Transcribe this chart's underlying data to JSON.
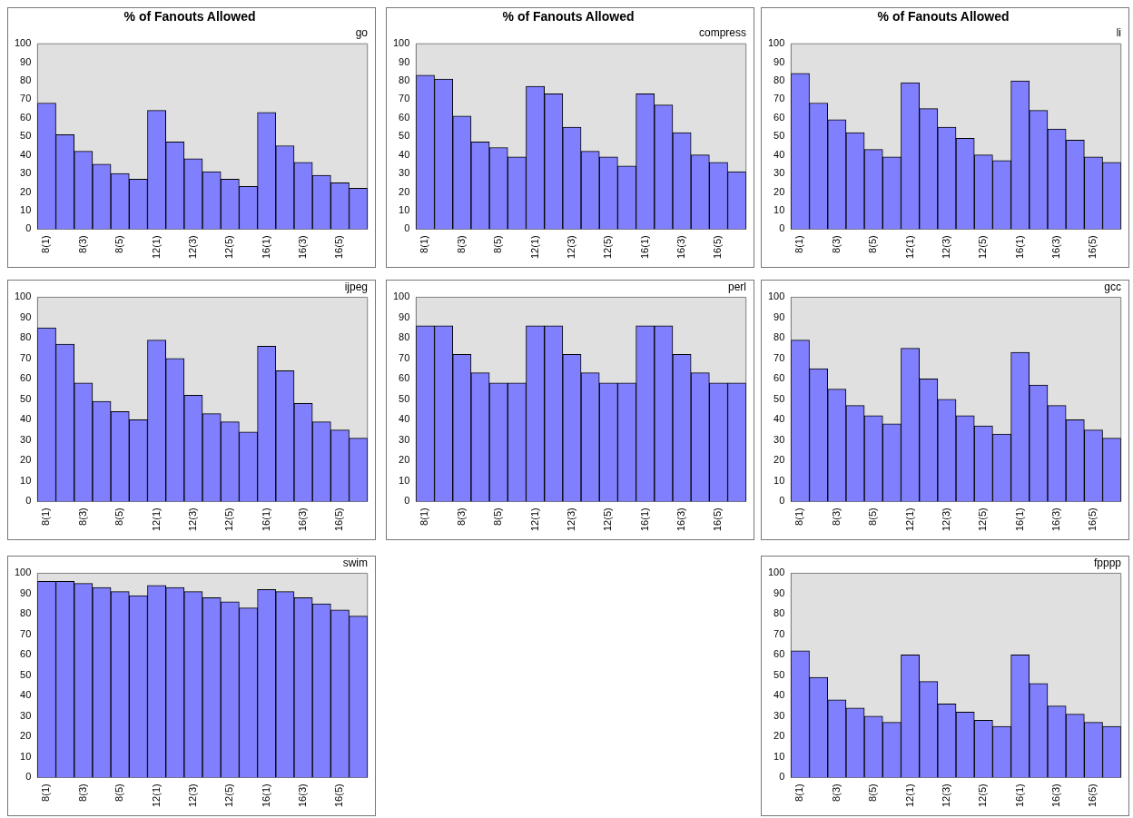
{
  "chart_data": [
    {
      "type": "bar",
      "title": "% of Fanouts Allowed",
      "subtitle": "go",
      "categories": [
        "8(1)",
        null,
        "8(3)",
        null,
        "8(5)",
        null,
        "12(1)",
        null,
        "12(3)",
        null,
        "12(5)",
        null,
        "16(1)",
        null,
        "16(3)",
        null,
        "16(5)",
        null
      ],
      "values": [
        68,
        51,
        42,
        35,
        30,
        27,
        64,
        47,
        38,
        31,
        27,
        23,
        63,
        45,
        36,
        29,
        25,
        22
      ],
      "color": "#8080ff",
      "ylim": [
        0,
        100
      ],
      "yticks": [
        0,
        10,
        20,
        30,
        40,
        50,
        60,
        70,
        80,
        90,
        100
      ],
      "grid": false,
      "legend": false
    },
    {
      "type": "bar",
      "title": "% of Fanouts Allowed",
      "subtitle": "compress",
      "categories": [
        "8(1)",
        null,
        "8(3)",
        null,
        "8(5)",
        null,
        "12(1)",
        null,
        "12(3)",
        null,
        "12(5)",
        null,
        "16(1)",
        null,
        "16(3)",
        null,
        "16(5)",
        null
      ],
      "values": [
        83,
        81,
        61,
        47,
        44,
        39,
        77,
        73,
        55,
        42,
        39,
        34,
        73,
        67,
        52,
        40,
        36,
        31
      ],
      "color": "#8080ff",
      "ylim": [
        0,
        100
      ],
      "yticks": [
        0,
        10,
        20,
        30,
        40,
        50,
        60,
        70,
        80,
        90,
        100
      ],
      "grid": false,
      "legend": false
    },
    {
      "type": "bar",
      "title": "% of Fanouts Allowed",
      "subtitle": "li",
      "categories": [
        "8(1)",
        null,
        "8(3)",
        null,
        "8(5)",
        null,
        "12(1)",
        null,
        "12(3)",
        null,
        "12(5)",
        null,
        "16(1)",
        null,
        "16(3)",
        null,
        "16(5)",
        null
      ],
      "values": [
        84,
        68,
        59,
        52,
        43,
        39,
        79,
        65,
        55,
        49,
        40,
        37,
        80,
        64,
        54,
        48,
        39,
        36
      ],
      "color": "#8080ff",
      "ylim": [
        0,
        100
      ],
      "yticks": [
        0,
        10,
        20,
        30,
        40,
        50,
        60,
        70,
        80,
        90,
        100
      ],
      "grid": false,
      "legend": false
    },
    {
      "type": "bar",
      "subtitle": "ijpeg",
      "categories": [
        "8(1)",
        null,
        "8(3)",
        null,
        "8(5)",
        null,
        "12(1)",
        null,
        "12(3)",
        null,
        "12(5)",
        null,
        "16(1)",
        null,
        "16(3)",
        null,
        "16(5)",
        null
      ],
      "values": [
        85,
        77,
        58,
        49,
        44,
        40,
        79,
        70,
        52,
        43,
        39,
        34,
        76,
        64,
        48,
        39,
        35,
        31
      ],
      "color": "#8080ff",
      "ylim": [
        0,
        100
      ],
      "yticks": [
        0,
        10,
        20,
        30,
        40,
        50,
        60,
        70,
        80,
        90,
        100
      ],
      "grid": false,
      "legend": false
    },
    {
      "type": "bar",
      "subtitle": "perl",
      "categories": [
        "8(1)",
        null,
        "8(3)",
        null,
        "8(5)",
        null,
        "12(1)",
        null,
        "12(3)",
        null,
        "12(5)",
        null,
        "16(1)",
        null,
        "16(3)",
        null,
        "16(5)",
        null
      ],
      "values": [
        86,
        86,
        72,
        63,
        58,
        58,
        86,
        86,
        72,
        63,
        58,
        58,
        86,
        86,
        72,
        63,
        58,
        58
      ],
      "color": "#8080ff",
      "ylim": [
        0,
        100
      ],
      "yticks": [
        0,
        10,
        20,
        30,
        40,
        50,
        60,
        70,
        80,
        90,
        100
      ],
      "grid": false,
      "legend": false
    },
    {
      "type": "bar",
      "subtitle": "gcc",
      "categories": [
        "8(1)",
        null,
        "8(3)",
        null,
        "8(5)",
        null,
        "12(1)",
        null,
        "12(3)",
        null,
        "12(5)",
        null,
        "16(1)",
        null,
        "16(3)",
        null,
        "16(5)",
        null
      ],
      "values": [
        79,
        65,
        55,
        47,
        42,
        38,
        75,
        60,
        50,
        42,
        37,
        33,
        73,
        57,
        47,
        40,
        35,
        31
      ],
      "color": "#8080ff",
      "ylim": [
        0,
        100
      ],
      "yticks": [
        0,
        10,
        20,
        30,
        40,
        50,
        60,
        70,
        80,
        90,
        100
      ],
      "grid": false,
      "legend": false
    },
    {
      "type": "bar",
      "subtitle": "swim",
      "categories": [
        "8(1)",
        null,
        "8(3)",
        null,
        "8(5)",
        null,
        "12(1)",
        null,
        "12(3)",
        null,
        "12(5)",
        null,
        "16(1)",
        null,
        "16(3)",
        null,
        "16(5)",
        null
      ],
      "values": [
        96,
        96,
        95,
        93,
        91,
        89,
        94,
        93,
        91,
        88,
        86,
        83,
        92,
        91,
        88,
        85,
        82,
        79
      ],
      "color": "#8080ff",
      "ylim": [
        0,
        100
      ],
      "yticks": [
        0,
        10,
        20,
        30,
        40,
        50,
        60,
        70,
        80,
        90,
        100
      ],
      "grid": false,
      "legend": false
    },
    {
      "type": "bar",
      "subtitle": "fpppp",
      "categories": [
        "8(1)",
        null,
        "8(3)",
        null,
        "8(5)",
        null,
        "12(1)",
        null,
        "12(3)",
        null,
        "12(5)",
        null,
        "16(1)",
        null,
        "16(3)",
        null,
        "16(5)",
        null
      ],
      "values": [
        62,
        49,
        38,
        34,
        30,
        27,
        60,
        47,
        36,
        32,
        28,
        25,
        60,
        46,
        35,
        31,
        27,
        25
      ],
      "color": "#8080ff",
      "ylim": [
        0,
        100
      ],
      "yticks": [
        0,
        10,
        20,
        30,
        40,
        50,
        60,
        70,
        80,
        90,
        100
      ],
      "grid": false,
      "legend": false
    }
  ]
}
